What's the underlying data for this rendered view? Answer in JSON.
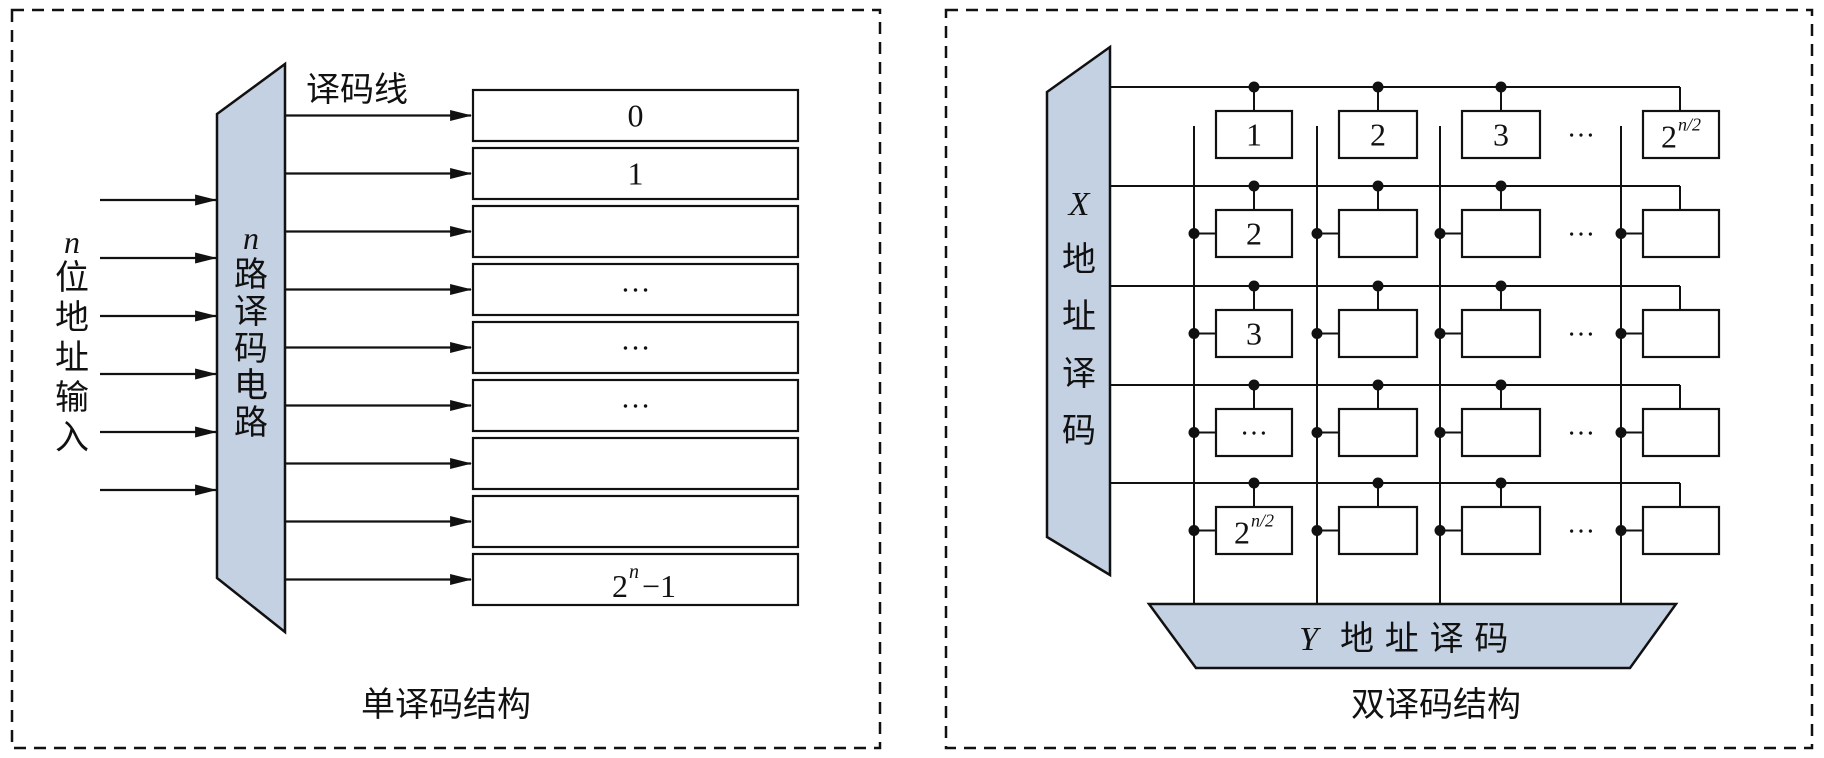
{
  "left": {
    "caption": "单译码结构",
    "decode_line_label": "译码线",
    "decoder_n": "n",
    "decoder_chars": [
      "路",
      "译",
      "码",
      "电",
      "路"
    ],
    "input_n": "n",
    "input_chars": [
      "位",
      "地",
      "址",
      "输",
      "入"
    ],
    "rows": [
      "0",
      "1",
      "",
      "…",
      "…",
      "…",
      "",
      ""
    ],
    "last_base": "2",
    "last_sup": "n",
    "last_suffix": "−1"
  },
  "right": {
    "caption": "双译码结构",
    "x_letter": "X",
    "x_chars": [
      "地",
      "址",
      "译",
      "码"
    ],
    "y_letter": "Y",
    "y_text": "地 址 译 码",
    "ellipsis": "…",
    "cell_base": "2",
    "cell_sup": "n/2",
    "top_row_labels": [
      "1",
      "2",
      "3"
    ],
    "first_col_labels": [
      "2",
      "3",
      "…"
    ]
  },
  "colors": {
    "fill": "#c4d1e2",
    "stroke": "#111111"
  }
}
